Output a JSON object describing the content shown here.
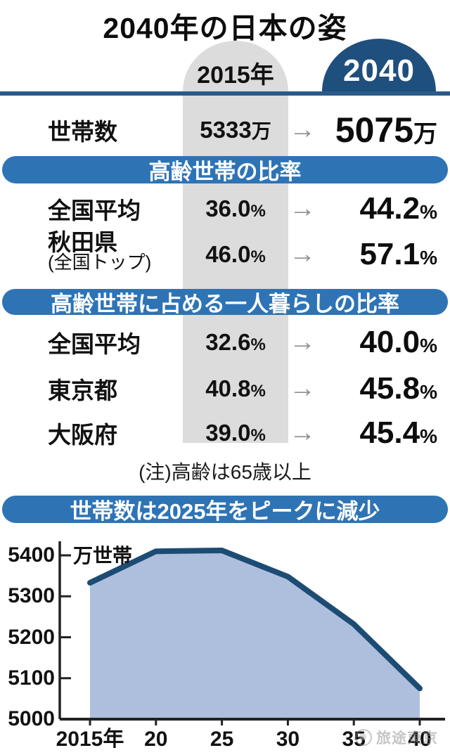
{
  "title": "2040年の日本の姿",
  "columns": {
    "label_2015": "2015年",
    "label_2040": "2040"
  },
  "units": {
    "man": "万",
    "pct": "%"
  },
  "icons": {
    "arrow_right": "→"
  },
  "household_row": {
    "label": "世帯数",
    "v2015": "5333",
    "v2040": "5075"
  },
  "section_elderly": {
    "title": "高齢世帯の比率",
    "rows": [
      {
        "label": "全国平均",
        "v2015": "36.0",
        "v2040": "44.2"
      },
      {
        "label": "秋田県",
        "sub": "(全国トップ)",
        "v2015": "46.0",
        "v2040": "57.1"
      }
    ]
  },
  "section_single": {
    "title": "高齢世帯に占める一人暮らしの比率",
    "rows": [
      {
        "label": "全国平均",
        "v2015": "32.6",
        "v2040": "40.0"
      },
      {
        "label": "東京都",
        "v2015": "40.8",
        "v2040": "45.8"
      },
      {
        "label": "大阪府",
        "v2015": "39.0",
        "v2040": "45.4"
      }
    ]
  },
  "note": "(注)高齢は65歳以上",
  "chart_data": {
    "type": "area",
    "title": "世帯数は2025年をピークに減少",
    "series_name": "世帯数",
    "x": [
      2015,
      2020,
      2025,
      2030,
      2035,
      2040
    ],
    "x_tick_labels": [
      "2015年",
      "20",
      "25",
      "30",
      "35",
      "40"
    ],
    "values": [
      5333,
      5410,
      5412,
      5348,
      5232,
      5075
    ],
    "ylabel": "万世帯",
    "y_ticks": [
      5000,
      5100,
      5200,
      5300,
      5400
    ],
    "ylim": [
      5000,
      5430
    ],
    "xlim": [
      2015,
      2040
    ],
    "grid": false,
    "legend": "none",
    "line_color": "#1c4c74",
    "fill_color": "#aebfdd",
    "axis_color": "#222222"
  },
  "watermark": {
    "text": "旅途東京"
  },
  "colors": {
    "dark_blue": "#1f4f7d",
    "banner_blue": "#2e74b5",
    "column_gray": "#dcdcdc",
    "area_fill": "#aebfdd",
    "arrow_gray": "#8a8f94",
    "watermark_gray": "#8e8e8e"
  }
}
